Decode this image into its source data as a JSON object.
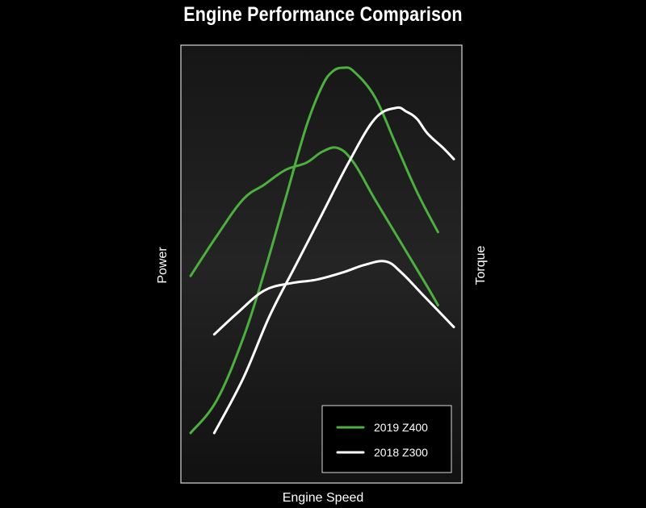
{
  "chart_data": {
    "type": "line",
    "title": "Engine Performance Comparison",
    "xlabel": "Engine Speed",
    "ylabel_left": "Power",
    "ylabel_right": "Torque",
    "xlim": [
      0,
      100
    ],
    "ylim": [
      0,
      100
    ],
    "grid": false,
    "legend_position": "bottom-right",
    "series": [
      {
        "name": "2019 Z400",
        "metric": "Power",
        "color": "#4caf40",
        "x": [
          0,
          10,
          20,
          28,
          36,
          44,
          50,
          54,
          58,
          62,
          70,
          78,
          86,
          94
        ],
        "y": [
          0,
          9,
          26,
          44,
          64,
          84,
          95,
          99,
          100,
          99,
          92,
          79,
          66,
          55
        ]
      },
      {
        "name": "2019 Z400",
        "metric": "Torque",
        "color": "#4caf40",
        "x": [
          0,
          10,
          20,
          28,
          36,
          44,
          50,
          56,
          62,
          70,
          80,
          90,
          94
        ],
        "y": [
          43,
          54,
          64,
          68,
          72,
          74,
          77,
          78,
          74,
          64,
          52,
          40,
          35
        ]
      },
      {
        "name": "2018 Z300",
        "metric": "Power",
        "color": "#ffffff",
        "x": [
          9,
          20,
          30,
          40,
          50,
          60,
          70,
          78,
          82,
          86,
          90,
          96,
          100
        ],
        "y": [
          0,
          15,
          32,
          46,
          60,
          74,
          86,
          89,
          88,
          86,
          82,
          78,
          75
        ]
      },
      {
        "name": "2018 Z300",
        "metric": "Torque",
        "color": "#ffffff",
        "x": [
          9,
          18,
          28,
          38,
          48,
          58,
          66,
          74,
          80,
          88,
          96,
          100
        ],
        "y": [
          27,
          33,
          39,
          41,
          42,
          44,
          46,
          47,
          44,
          38,
          32,
          29
        ]
      }
    ],
    "legend": [
      {
        "label": "2019 Z400",
        "color": "#4caf40"
      },
      {
        "label": "2018 Z300",
        "color": "#ffffff"
      }
    ]
  }
}
